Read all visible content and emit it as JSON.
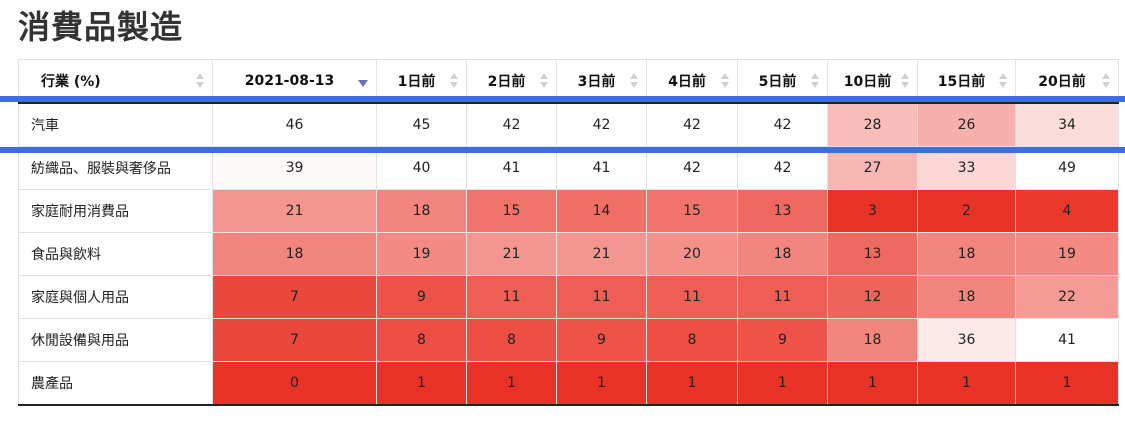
{
  "title": "消費品製造",
  "columns": [
    "行業 (%)",
    "2021-08-13",
    "1日前",
    "2日前",
    "3日前",
    "4日前",
    "5日前",
    "10日前",
    "15日前",
    "20日前"
  ],
  "sort_column": "2021-08-13",
  "highlight_color": "#3f6fdc",
  "rows": [
    {
      "label": "汽車",
      "values": [
        46,
        45,
        42,
        42,
        42,
        42,
        28,
        26,
        34
      ]
    },
    {
      "label": "紡織品、服裝與奢侈品",
      "values": [
        39,
        40,
        41,
        41,
        42,
        42,
        27,
        33,
        49
      ]
    },
    {
      "label": "家庭耐用消費品",
      "values": [
        21,
        18,
        15,
        14,
        15,
        13,
        3,
        2,
        4
      ]
    },
    {
      "label": "食品與飲料",
      "values": [
        18,
        19,
        21,
        21,
        20,
        18,
        13,
        18,
        19
      ]
    },
    {
      "label": "家庭與個人用品",
      "values": [
        7,
        9,
        11,
        11,
        11,
        11,
        12,
        18,
        22
      ]
    },
    {
      "label": "休閒設備與用品",
      "values": [
        7,
        8,
        8,
        9,
        8,
        9,
        18,
        36,
        41
      ]
    },
    {
      "label": "農產品",
      "values": [
        0,
        1,
        1,
        1,
        1,
        1,
        1,
        1,
        1
      ]
    }
  ]
}
